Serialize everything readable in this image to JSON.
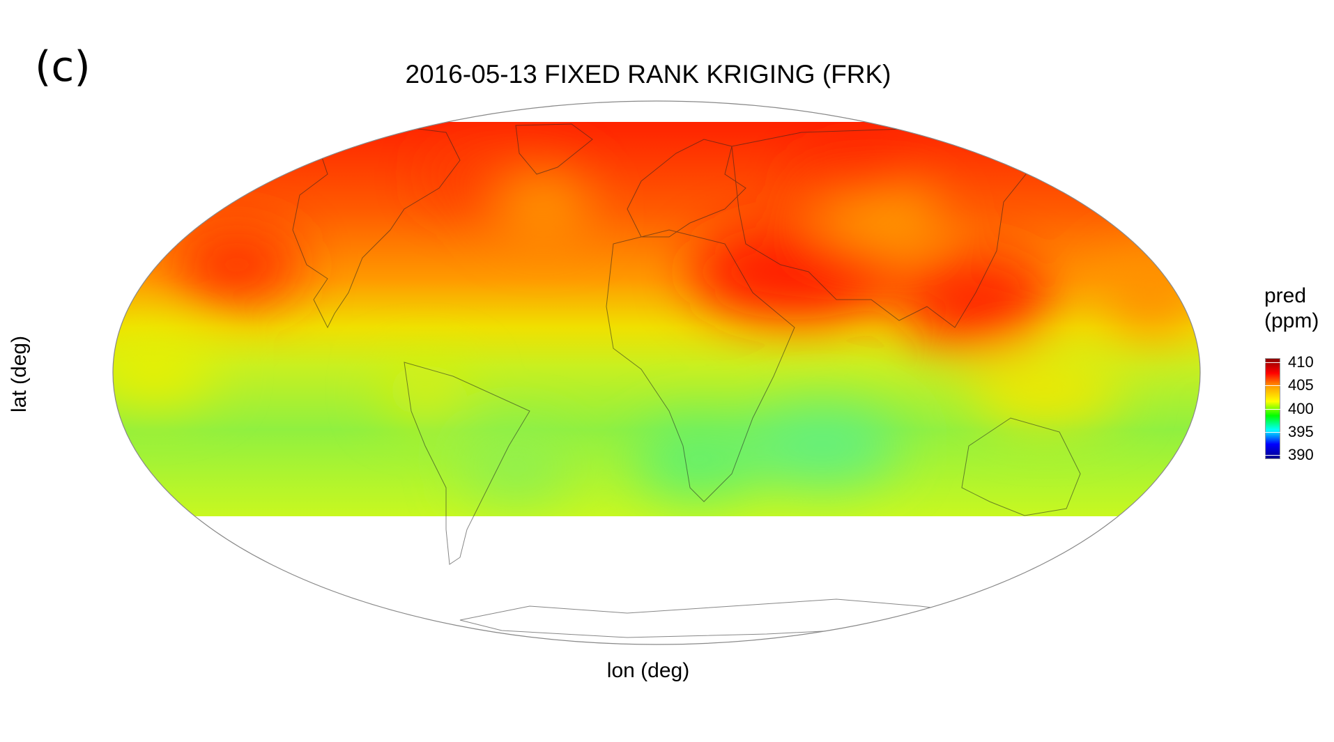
{
  "panel_label": "(c)",
  "title": "2016-05-13  FIXED RANK KRIGING (FRK)",
  "xlabel": "lon (deg)",
  "ylabel": "lat (deg)",
  "legend": {
    "title_line1": "pred",
    "title_line2": "(ppm)",
    "ticks": [
      "410",
      "405",
      "400",
      "395",
      "390"
    ],
    "colors": [
      "#8b0000",
      "#ff0000",
      "#ffa500",
      "#ffff00",
      "#00ff00",
      "#00ffff",
      "#0000ff",
      "#00008b"
    ]
  },
  "chart_data": {
    "type": "heatmap",
    "projection": "mollweide",
    "variable": "pred",
    "units": "ppm",
    "color_range": [
      390,
      410
    ],
    "lat_extent_shown": [
      -60,
      80
    ],
    "lon_extent_shown": [
      -180,
      180
    ],
    "grid": false,
    "legend_placement": "right"
  }
}
